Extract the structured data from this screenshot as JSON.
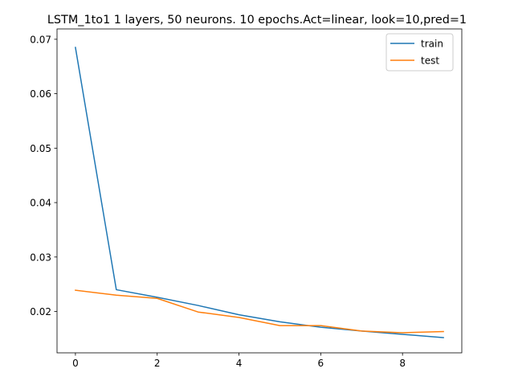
{
  "chart_data": {
    "type": "line",
    "title": "LSTM_1to1 1 layers, 50 neurons. 10 epochs.Act=linear, look=10,pred=1",
    "xlabel": "",
    "ylabel": "",
    "x": [
      0,
      1,
      2,
      3,
      4,
      5,
      6,
      7,
      8,
      9
    ],
    "xlim": [
      -0.45,
      9.45
    ],
    "ylim": [
      0.0124,
      0.0719
    ],
    "xticks": [
      0,
      2,
      4,
      6,
      8
    ],
    "yticks": [
      0.02,
      0.03,
      0.04,
      0.05,
      0.06,
      0.07
    ],
    "ytick_labels": [
      "0.02",
      "0.03",
      "0.04",
      "0.05",
      "0.06",
      "0.07"
    ],
    "grid": false,
    "legend_position": "top-right",
    "series": [
      {
        "name": "train",
        "color": "#1f77b4",
        "values": [
          0.0685,
          0.024,
          0.0226,
          0.0211,
          0.0194,
          0.0181,
          0.0171,
          0.0164,
          0.0158,
          0.0152
        ]
      },
      {
        "name": "test",
        "color": "#ff7f0e",
        "values": [
          0.0239,
          0.023,
          0.0224,
          0.0199,
          0.0189,
          0.0174,
          0.0174,
          0.0164,
          0.0161,
          0.0163
        ]
      }
    ]
  }
}
